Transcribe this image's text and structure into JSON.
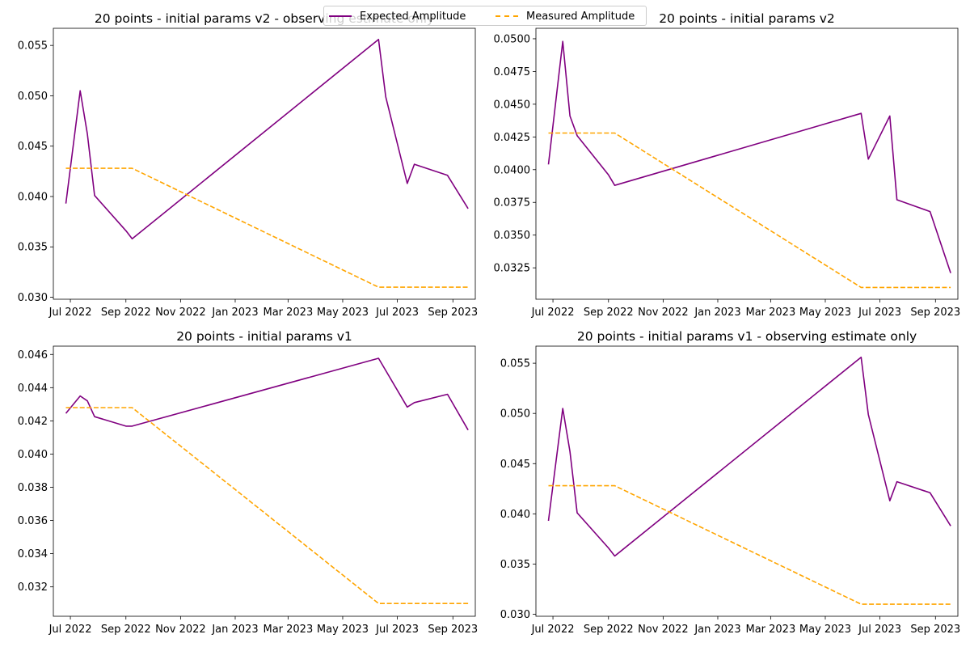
{
  "legend": {
    "entries": [
      {
        "label": "Expected Amplitude",
        "color": "#800080",
        "style": "solid"
      },
      {
        "label": "Measured Amplitude",
        "color": "#ffa500",
        "style": "dashed"
      }
    ]
  },
  "chart_data": [
    {
      "type": "line",
      "title": "20 points - initial params v2 - observing estimate only",
      "x_ticks": [
        "Jul 2022",
        "Sep 2022",
        "Nov 2022",
        "Jan 2023",
        "Mar 2023",
        "May 2023",
        "Jul 2023",
        "Sep 2023"
      ],
      "y_ticks": [
        "0.030",
        "0.035",
        "0.040",
        "0.045",
        "0.050",
        "0.055"
      ],
      "ylim": [
        0.0298,
        0.0567
      ],
      "xlim": [
        "2022-06-12",
        "2023-09-26"
      ],
      "series": [
        {
          "name": "Expected Amplitude",
          "color": "#800080",
          "style": "solid",
          "x": [
            "2022-06-26",
            "2022-07-12",
            "2022-07-20",
            "2022-07-28",
            "2022-09-01",
            "2022-09-08",
            "2023-06-10",
            "2023-06-18",
            "2023-07-12",
            "2023-07-20",
            "2023-08-26",
            "2023-09-18"
          ],
          "y": [
            0.0393,
            0.0505,
            0.0462,
            0.0401,
            0.0366,
            0.0358,
            0.0556,
            0.0499,
            0.0413,
            0.0432,
            0.0421,
            0.0388
          ]
        },
        {
          "name": "Measured Amplitude",
          "color": "#ffa500",
          "style": "dashed",
          "x": [
            "2022-06-26",
            "2022-09-08",
            "2023-06-10",
            "2023-09-18"
          ],
          "y": [
            0.0428,
            0.0428,
            0.031,
            0.031
          ]
        }
      ]
    },
    {
      "type": "line",
      "title": "20 points - initial params v2",
      "x_ticks": [
        "Jul 2022",
        "Sep 2022",
        "Nov 2022",
        "Jan 2023",
        "Mar 2023",
        "May 2023",
        "Jul 2023",
        "Sep 2023"
      ],
      "y_ticks": [
        "0.0325",
        "0.0350",
        "0.0375",
        "0.0400",
        "0.0425",
        "0.0450",
        "0.0475",
        "0.0500"
      ],
      "ylim": [
        0.0301,
        0.0508
      ],
      "xlim": [
        "2022-06-12",
        "2023-09-26"
      ],
      "series": [
        {
          "name": "Expected Amplitude",
          "color": "#800080",
          "style": "solid",
          "x": [
            "2022-06-26",
            "2022-07-12",
            "2022-07-20",
            "2022-07-28",
            "2022-09-01",
            "2022-09-08",
            "2023-06-10",
            "2023-06-18",
            "2023-07-12",
            "2023-07-20",
            "2023-08-26",
            "2023-09-18"
          ],
          "y": [
            0.0404,
            0.0498,
            0.0441,
            0.0426,
            0.0396,
            0.0388,
            0.0443,
            0.0408,
            0.0441,
            0.0377,
            0.0368,
            0.0321
          ]
        },
        {
          "name": "Measured Amplitude",
          "color": "#ffa500",
          "style": "dashed",
          "x": [
            "2022-06-26",
            "2022-09-08",
            "2023-06-10",
            "2023-09-18"
          ],
          "y": [
            0.0428,
            0.0428,
            0.031,
            0.031
          ]
        }
      ]
    },
    {
      "type": "line",
      "title": "20 points - initial params v1",
      "x_ticks": [
        "Jul 2022",
        "Sep 2022",
        "Nov 2022",
        "Jan 2023",
        "Mar 2023",
        "May 2023",
        "Jul 2023",
        "Sep 2023"
      ],
      "y_ticks": [
        "0.032",
        "0.034",
        "0.036",
        "0.038",
        "0.040",
        "0.042",
        "0.044",
        "0.046"
      ],
      "ylim": [
        0.03023,
        0.0465
      ],
      "xlim": [
        "2022-06-12",
        "2023-09-26"
      ],
      "series": [
        {
          "name": "Expected Amplitude",
          "color": "#800080",
          "style": "solid",
          "x": [
            "2022-06-26",
            "2022-07-12",
            "2022-07-20",
            "2022-07-28",
            "2022-09-01",
            "2022-09-08",
            "2023-06-10",
            "2023-07-12",
            "2023-07-20",
            "2023-08-26",
            "2023-09-18"
          ],
          "y": [
            0.04245,
            0.0435,
            0.0432,
            0.04225,
            0.04168,
            0.04168,
            0.04577,
            0.04283,
            0.0431,
            0.0436,
            0.04145
          ]
        },
        {
          "name": "Measured Amplitude",
          "color": "#ffa500",
          "style": "dashed",
          "x": [
            "2022-06-26",
            "2022-09-08",
            "2023-06-10",
            "2023-09-18"
          ],
          "y": [
            0.0428,
            0.0428,
            0.031,
            0.031
          ]
        }
      ]
    },
    {
      "type": "line",
      "title": "20 points - initial params v1 - observing estimate only",
      "x_ticks": [
        "Jul 2022",
        "Sep 2022",
        "Nov 2022",
        "Jan 2023",
        "Mar 2023",
        "May 2023",
        "Jul 2023",
        "Sep 2023"
      ],
      "y_ticks": [
        "0.030",
        "0.035",
        "0.040",
        "0.045",
        "0.050",
        "0.055"
      ],
      "ylim": [
        0.0298,
        0.0567
      ],
      "xlim": [
        "2022-06-12",
        "2023-09-26"
      ],
      "series": [
        {
          "name": "Expected Amplitude",
          "color": "#800080",
          "style": "solid",
          "x": [
            "2022-06-26",
            "2022-07-12",
            "2022-07-20",
            "2022-07-28",
            "2022-09-01",
            "2022-09-08",
            "2023-06-10",
            "2023-06-18",
            "2023-07-12",
            "2023-07-20",
            "2023-08-26",
            "2023-09-18"
          ],
          "y": [
            0.0393,
            0.0505,
            0.0462,
            0.0401,
            0.0366,
            0.0358,
            0.0556,
            0.0499,
            0.0413,
            0.0432,
            0.0421,
            0.0388
          ]
        },
        {
          "name": "Measured Amplitude",
          "color": "#ffa500",
          "style": "dashed",
          "x": [
            "2022-06-26",
            "2022-09-08",
            "2023-06-10",
            "2023-09-18"
          ],
          "y": [
            0.0428,
            0.0428,
            0.031,
            0.031
          ]
        }
      ]
    }
  ]
}
